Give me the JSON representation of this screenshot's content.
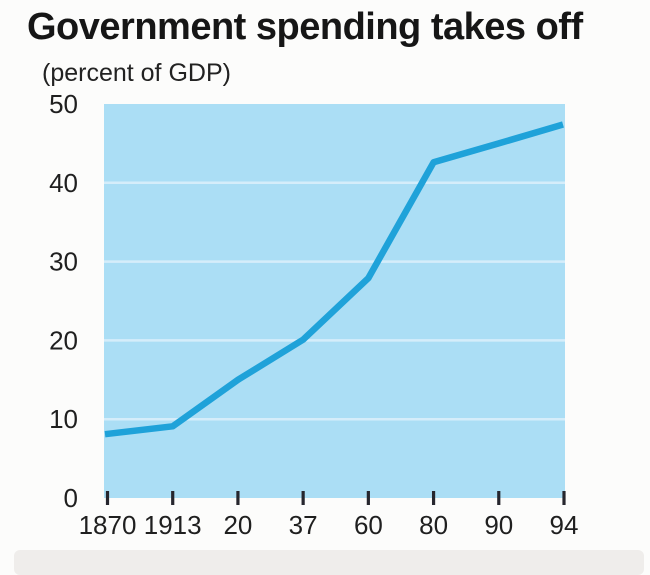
{
  "page": {
    "background_color": "#fcfcfb",
    "footer_strip_color": "#efedeb"
  },
  "chart_data": {
    "type": "line",
    "title": "Government spending takes off",
    "subtitle": "(percent of GDP)",
    "categories": [
      "1870",
      "1913",
      "20",
      "37",
      "60",
      "80",
      "90",
      "94"
    ],
    "series": [
      {
        "name": "Government spending, percent of GDP",
        "values": [
          8.1,
          9.1,
          15.0,
          20.1,
          27.9,
          42.6,
          45.0,
          47.4
        ]
      }
    ],
    "xlabel": "",
    "ylabel": "percent of GDP",
    "ylim": [
      0,
      50
    ],
    "yticks": [
      0,
      10,
      20,
      30,
      40,
      50
    ],
    "gridline_values": [
      10,
      20,
      30,
      40
    ],
    "grid": "horizontal light lines inside plot only",
    "legend": "none",
    "colors": {
      "line": "#1fa2d9",
      "plot_background": "#abdef5",
      "gridline": "#d5edfa",
      "axis_text": "#1f1f1f",
      "tick": "#26262e",
      "title_text": "#161616"
    }
  }
}
